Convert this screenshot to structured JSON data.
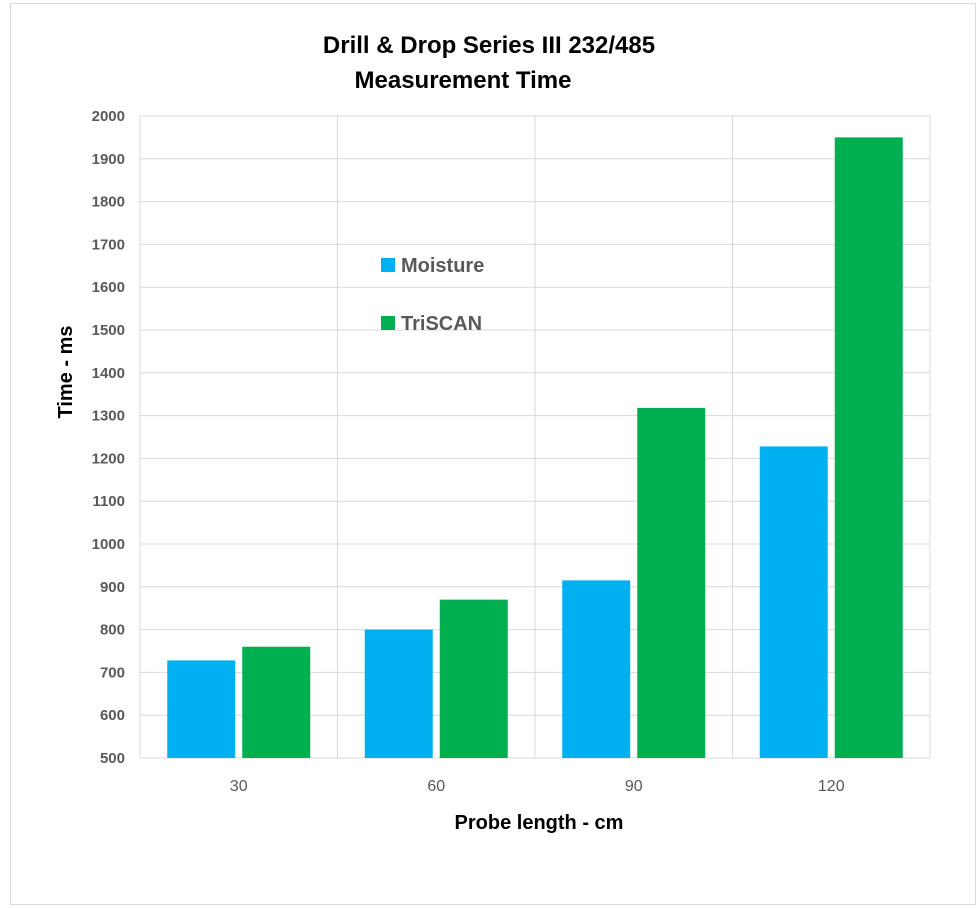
{
  "chart_data": {
    "type": "bar",
    "title": "Drill & Drop Series III 232/485",
    "subtitle": "Measurement Time",
    "xlabel": "Probe length - cm",
    "ylabel": "Time  -  ms",
    "categories": [
      "30",
      "60",
      "90",
      "120"
    ],
    "series": [
      {
        "name": "Moisture",
        "values": [
          728,
          800,
          915,
          1228
        ],
        "color": "#00b0f0"
      },
      {
        "name": "TriSCAN",
        "values": [
          760,
          870,
          1318,
          1950
        ],
        "color": "#00b050"
      }
    ],
    "ylim": [
      500,
      2000
    ],
    "yticks": [
      "500",
      "600",
      "700",
      "800",
      "900",
      "1000",
      "1100",
      "1200",
      "1300",
      "1400",
      "1500",
      "1600",
      "1700",
      "1800",
      "1900",
      "2000"
    ],
    "grid": true,
    "legend_position": "center-left inside plot"
  }
}
